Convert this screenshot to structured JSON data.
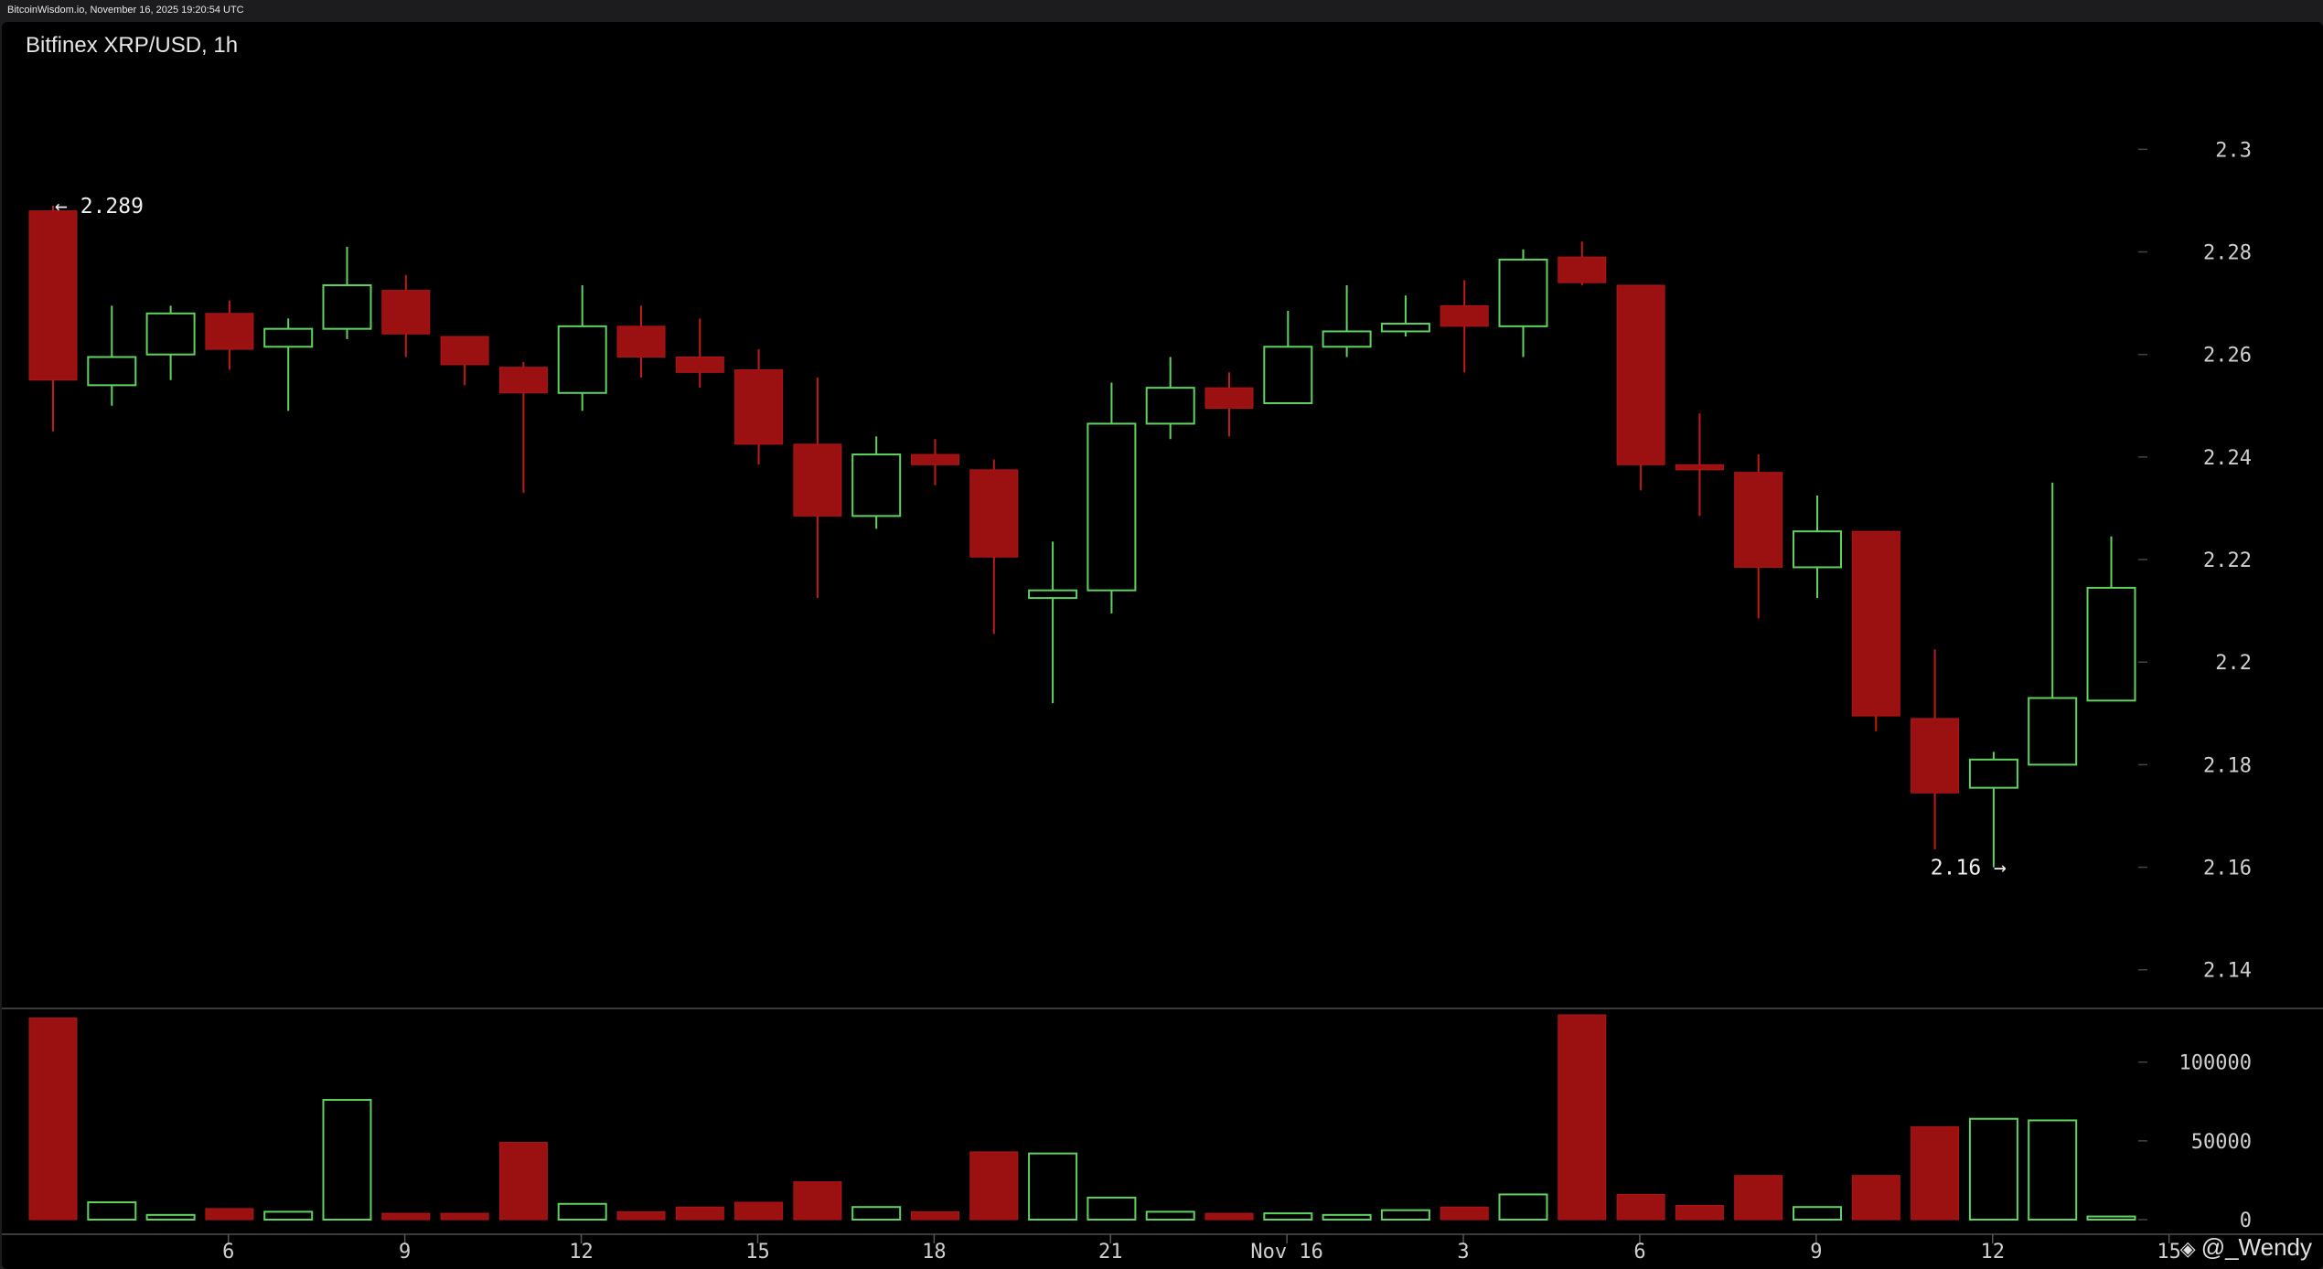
{
  "header": {
    "source_timestamp": "BitcoinWisdom.io, November 16, 2025 19:20:54 UTC"
  },
  "chart_data": {
    "type": "candlestick",
    "title": "Bitfinex XRP/USD, 1h",
    "price_axis": {
      "ticks": [
        2.14,
        2.16,
        2.18,
        2.2,
        2.22,
        2.24,
        2.26,
        2.28,
        2.3
      ],
      "tick_labels": [
        "2.14",
        "2.16",
        "2.18",
        "2.2",
        "2.22",
        "2.24",
        "2.26",
        "2.28",
        "2.3"
      ],
      "range": [
        2.133,
        2.317
      ]
    },
    "volume_axis": {
      "ticks": [
        0,
        50000,
        100000
      ],
      "tick_labels": [
        "0",
        "50000",
        "100000"
      ],
      "range": [
        0,
        130000
      ]
    },
    "x_axis": {
      "labels": [
        {
          "index": 3.2,
          "text": "6"
        },
        {
          "index": 6.2,
          "text": "9"
        },
        {
          "index": 9.2,
          "text": "12"
        },
        {
          "index": 12.2,
          "text": "15"
        },
        {
          "index": 15.2,
          "text": "18"
        },
        {
          "index": 18.2,
          "text": "21"
        },
        {
          "index": 21.2,
          "text": "Nov 16"
        },
        {
          "index": 24.2,
          "text": "3"
        },
        {
          "index": 27.2,
          "text": "6"
        },
        {
          "index": 30.2,
          "text": "9"
        },
        {
          "index": 33.2,
          "text": "12"
        },
        {
          "index": 36.2,
          "text": "15"
        }
      ]
    },
    "candles": [
      {
        "o": 2.288,
        "h": 2.289,
        "l": 2.245,
        "c": 2.255,
        "v": 128000
      },
      {
        "o": 2.254,
        "h": 2.2695,
        "l": 2.25,
        "c": 2.2595,
        "v": 11000
      },
      {
        "o": 2.26,
        "h": 2.2695,
        "l": 2.255,
        "c": 2.268,
        "v": 3000
      },
      {
        "o": 2.268,
        "h": 2.2705,
        "l": 2.257,
        "c": 2.261,
        "v": 7000
      },
      {
        "o": 2.2615,
        "h": 2.267,
        "l": 2.249,
        "c": 2.265,
        "v": 5000
      },
      {
        "o": 2.265,
        "h": 2.281,
        "l": 2.263,
        "c": 2.2735,
        "v": 76000
      },
      {
        "o": 2.2725,
        "h": 2.2755,
        "l": 2.2595,
        "c": 2.264,
        "v": 4000
      },
      {
        "o": 2.2635,
        "h": 2.2635,
        "l": 2.254,
        "c": 2.258,
        "v": 4000
      },
      {
        "o": 2.2575,
        "h": 2.2585,
        "l": 2.233,
        "c": 2.2525,
        "v": 49000
      },
      {
        "o": 2.2525,
        "h": 2.2735,
        "l": 2.249,
        "c": 2.2655,
        "v": 10000
      },
      {
        "o": 2.2655,
        "h": 2.2695,
        "l": 2.2555,
        "c": 2.2595,
        "v": 5000
      },
      {
        "o": 2.2595,
        "h": 2.267,
        "l": 2.2535,
        "c": 2.2565,
        "v": 8000
      },
      {
        "o": 2.257,
        "h": 2.261,
        "l": 2.2385,
        "c": 2.2425,
        "v": 11000
      },
      {
        "o": 2.2425,
        "h": 2.2555,
        "l": 2.2125,
        "c": 2.2285,
        "v": 24000
      },
      {
        "o": 2.2285,
        "h": 2.244,
        "l": 2.226,
        "c": 2.2405,
        "v": 8000
      },
      {
        "o": 2.2405,
        "h": 2.2435,
        "l": 2.2345,
        "c": 2.2385,
        "v": 5000
      },
      {
        "o": 2.2375,
        "h": 2.2395,
        "l": 2.2055,
        "c": 2.2205,
        "v": 43000
      },
      {
        "o": 2.2125,
        "h": 2.2235,
        "l": 2.192,
        "c": 2.214,
        "v": 42000
      },
      {
        "o": 2.214,
        "h": 2.2545,
        "l": 2.2095,
        "c": 2.2465,
        "v": 14000
      },
      {
        "o": 2.2465,
        "h": 2.2595,
        "l": 2.2435,
        "c": 2.2535,
        "v": 5000
      },
      {
        "o": 2.2535,
        "h": 2.2565,
        "l": 2.244,
        "c": 2.2495,
        "v": 4000
      },
      {
        "o": 2.2505,
        "h": 2.2685,
        "l": 2.2505,
        "c": 2.2615,
        "v": 4000
      },
      {
        "o": 2.2615,
        "h": 2.2735,
        "l": 2.2595,
        "c": 2.2645,
        "v": 3000
      },
      {
        "o": 2.2645,
        "h": 2.2715,
        "l": 2.2635,
        "c": 2.266,
        "v": 6000
      },
      {
        "o": 2.2695,
        "h": 2.2745,
        "l": 2.2565,
        "c": 2.2655,
        "v": 8000
      },
      {
        "o": 2.2655,
        "h": 2.2805,
        "l": 2.2595,
        "c": 2.2785,
        "v": 16000
      },
      {
        "o": 2.279,
        "h": 2.282,
        "l": 2.2735,
        "c": 2.274,
        "v": 130000
      },
      {
        "o": 2.2735,
        "h": 2.2735,
        "l": 2.2335,
        "c": 2.2385,
        "v": 16000
      },
      {
        "o": 2.2385,
        "h": 2.2485,
        "l": 2.2285,
        "c": 2.2375,
        "v": 9000
      },
      {
        "o": 2.237,
        "h": 2.2405,
        "l": 2.2085,
        "c": 2.2185,
        "v": 28000
      },
      {
        "o": 2.2185,
        "h": 2.2325,
        "l": 2.2125,
        "c": 2.2255,
        "v": 8000
      },
      {
        "o": 2.2255,
        "h": 2.2255,
        "l": 2.1865,
        "c": 2.1895,
        "v": 28000
      },
      {
        "o": 2.189,
        "h": 2.2025,
        "l": 2.1635,
        "c": 2.1745,
        "v": 59000
      },
      {
        "o": 2.1755,
        "h": 2.1825,
        "l": 2.16,
        "c": 2.181,
        "v": 64000
      },
      {
        "o": 2.18,
        "h": 2.235,
        "l": 2.18,
        "c": 2.193,
        "v": 63000
      },
      {
        "o": 2.1925,
        "h": 2.2245,
        "l": 2.1925,
        "c": 2.2145,
        "v": 2000
      }
    ],
    "annotations": [
      {
        "text": "← 2.289",
        "candle": 0,
        "price": 2.289,
        "side": "right"
      },
      {
        "text": "2.16 →",
        "candle": 33,
        "price": 2.16,
        "side": "left"
      }
    ],
    "colors": {
      "up": "#5fd35f",
      "down": "#9b1111",
      "background": "#000000",
      "grid": "#333333",
      "axis_text": "#cfcfcf"
    }
  },
  "watermark": {
    "text": "@_Wendy",
    "icon": "brand-diamond-icon"
  }
}
